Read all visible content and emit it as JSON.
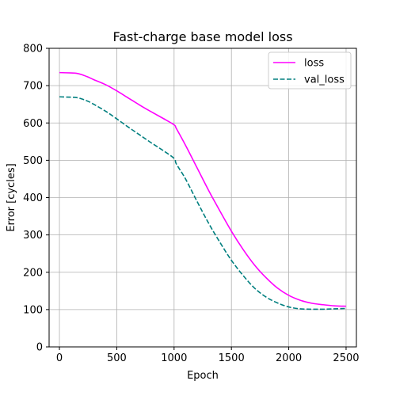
{
  "chart_data": {
    "type": "line",
    "title": "Fast-charge base model loss",
    "xlabel": "Epoch",
    "ylabel": "Error [cycles]",
    "xlim": [
      -90,
      2590
    ],
    "ylim": [
      0,
      800
    ],
    "xticks": [
      0,
      500,
      1000,
      1500,
      2000,
      2500
    ],
    "yticks": [
      0,
      100,
      200,
      300,
      400,
      500,
      600,
      700,
      800
    ],
    "grid": true,
    "legend_position": "top-right",
    "series": [
      {
        "name": "loss",
        "color": "#ff00ff",
        "dash": "solid",
        "x": [
          0,
          100,
          150,
          200,
          250,
          300,
          400,
          500,
          600,
          700,
          800,
          900,
          1000,
          1020,
          1100,
          1200,
          1300,
          1400,
          1500,
          1600,
          1700,
          1800,
          1900,
          2000,
          2100,
          2200,
          2300,
          2400,
          2500
        ],
        "y": [
          735,
          734,
          733,
          729,
          723,
          716,
          703,
          686,
          667,
          648,
          630,
          613,
          595,
          585,
          540,
          480,
          420,
          364,
          310,
          262,
          220,
          186,
          158,
          138,
          125,
          117,
          113,
          110,
          109
        ]
      },
      {
        "name": "val_loss",
        "color": "#007f7f",
        "dash": "dashed",
        "x": [
          0,
          100,
          150,
          200,
          250,
          300,
          400,
          500,
          600,
          700,
          800,
          900,
          1000,
          1020,
          1100,
          1200,
          1300,
          1400,
          1500,
          1600,
          1700,
          1800,
          1900,
          2000,
          2100,
          2200,
          2300,
          2400,
          2500
        ],
        "y": [
          670,
          669,
          668,
          664,
          658,
          650,
          632,
          611,
          589,
          568,
          547,
          527,
          505,
          490,
          450,
          390,
          332,
          280,
          232,
          192,
          158,
          134,
          118,
          107,
          102,
          101,
          101,
          102,
          103
        ]
      }
    ]
  }
}
